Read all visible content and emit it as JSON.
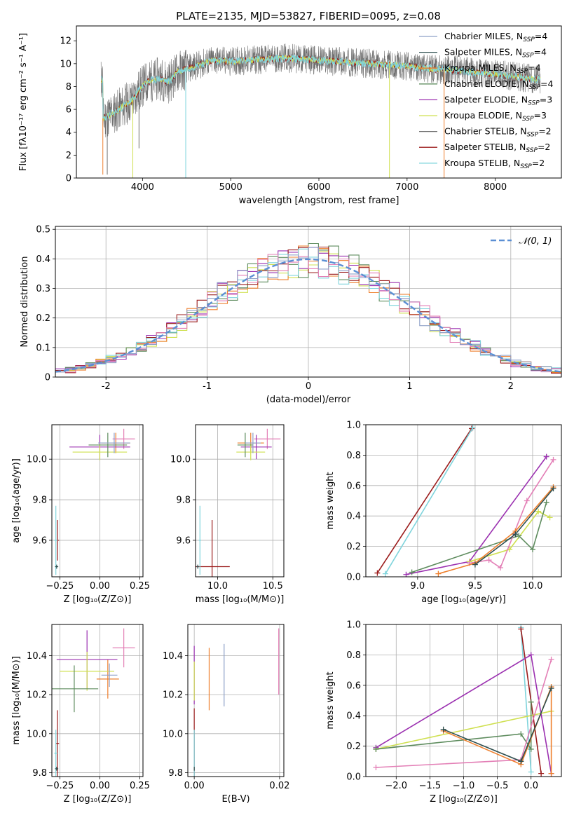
{
  "figure_title": "PLATE=2135, MJD=53827, FIBERID=0095, z=0.08",
  "colors": {
    "chab_miles": "#8ea0c8",
    "salp_miles": "#2f4f4f",
    "krou_miles": "#ee7f2d",
    "chab_elodie": "#5e8c5e",
    "salp_elodie": "#9b30b0",
    "krou_elodie": "#cfe050",
    "chab_stelib": "#707070",
    "salp_stelib": "#9b1c1c",
    "krou_stelib": "#7fd4dc",
    "pink": "#e37fb6",
    "gaussian": "#5b8fd4",
    "grid": "#b0b0b0"
  },
  "chart_data": [
    {
      "id": "spectrum",
      "type": "line",
      "title": "PLATE=2135, MJD=53827, FIBERID=0095, z=0.08",
      "xlabel": "wavelength [Angstrom, rest frame]",
      "ylabel": "Flux [fλ10⁻¹⁷ erg cm⁻² s⁻¹ A⁻¹]",
      "xlim": [
        3250,
        8750
      ],
      "ylim": [
        0,
        13.3
      ],
      "xticks": [
        4000,
        5000,
        6000,
        7000,
        8000
      ],
      "yticks": [
        0,
        2,
        4,
        6,
        8,
        10,
        12
      ],
      "legend_position": "right",
      "legend": [
        {
          "label": "Chabrier MILES, N",
          "sub": "SSP",
          "suffix": "=4",
          "color_key": "chab_miles"
        },
        {
          "label": "Salpeter MILES, N",
          "sub": "SSP",
          "suffix": "=4",
          "color_key": "salp_miles"
        },
        {
          "label": "Kroupa MILES, N",
          "sub": "SSP",
          "suffix": "=4",
          "color_key": "krou_miles"
        },
        {
          "label": "Chabrier ELODIE, N",
          "sub": "SSP",
          "suffix": "=4",
          "color_key": "chab_elodie"
        },
        {
          "label": "Salpeter ELODIE, N",
          "sub": "SSP",
          "suffix": "=3",
          "color_key": "salp_elodie"
        },
        {
          "label": "Kroupa ELODIE, N",
          "sub": "SSP",
          "suffix": "=3",
          "color_key": "krou_elodie"
        },
        {
          "label": "Chabrier STELIB, N",
          "sub": "SSP",
          "suffix": "=2",
          "color_key": "chab_stelib"
        },
        {
          "label": "Salpeter STELIB, N",
          "sub": "SSP",
          "suffix": "=2",
          "color_key": "salp_stelib"
        },
        {
          "label": "Kroupa STELIB, N",
          "sub": "SSP",
          "suffix": "=2",
          "color_key": "krou_stelib"
        }
      ],
      "continuum": [
        [
          3550,
          5.2
        ],
        [
          3700,
          5.8
        ],
        [
          3800,
          6.4
        ],
        [
          3900,
          6.9
        ],
        [
          3950,
          7.6
        ],
        [
          4050,
          8.4
        ],
        [
          4200,
          8.7
        ],
        [
          4300,
          8.4
        ],
        [
          4400,
          9.3
        ],
        [
          4600,
          9.8
        ],
        [
          4800,
          10.3
        ],
        [
          5000,
          10.2
        ],
        [
          5200,
          10.3
        ],
        [
          5400,
          10.4
        ],
        [
          5600,
          10.5
        ],
        [
          5800,
          10.4
        ],
        [
          6000,
          10.3
        ],
        [
          6200,
          10.2
        ],
        [
          6400,
          10.1
        ],
        [
          6600,
          10.0
        ],
        [
          6800,
          9.9
        ],
        [
          7000,
          9.8
        ],
        [
          7200,
          9.6
        ],
        [
          7400,
          9.5
        ],
        [
          7600,
          9.4
        ],
        [
          7800,
          9.2
        ],
        [
          8000,
          9.1
        ],
        [
          8200,
          8.9
        ],
        [
          8400,
          8.7
        ],
        [
          8500,
          8.6
        ]
      ],
      "spectrum_range": [
        3530,
        8510
      ],
      "dips": [
        {
          "x": 3550,
          "y": 0.3,
          "color_key": "krou_miles"
        },
        {
          "x": 3600,
          "y": 0.3,
          "color_key": "chab_stelib"
        },
        {
          "x": 3960,
          "y": 2.6,
          "color_key": "chab_stelib"
        },
        {
          "x": 3890,
          "y": 0,
          "color_key": "krou_elodie"
        },
        {
          "x": 4490,
          "y": 0,
          "color_key": "krou_stelib"
        },
        {
          "x": 6800,
          "y": 0,
          "color_key": "krou_elodie"
        },
        {
          "x": 7420,
          "y": 0,
          "color_key": "krou_miles"
        },
        {
          "x": 8505,
          "y": 8.0,
          "color_key": "chab_stelib"
        }
      ]
    },
    {
      "id": "residuals",
      "type": "bar",
      "xlabel": "(data-model)/error",
      "ylabel": "Normed distribution",
      "xlim": [
        -2.5,
        2.5
      ],
      "ylim": [
        0,
        0.51
      ],
      "xticks": [
        -2,
        -1,
        0,
        1,
        2
      ],
      "yticks": [
        0.0,
        0.1,
        0.2,
        0.3,
        0.4,
        0.5
      ],
      "legend_position": "top-right",
      "gaussian_label": "𝒩(0, 1)",
      "bin_width": 0.1,
      "histogram_series": [
        {
          "color_key": "salp_elodie",
          "seed": 1
        },
        {
          "color_key": "krou_elodie",
          "seed": 2
        },
        {
          "color_key": "chab_elodie",
          "seed": 3
        },
        {
          "color_key": "krou_miles",
          "seed": 4
        },
        {
          "color_key": "salp_stelib",
          "seed": 5
        },
        {
          "color_key": "krou_stelib",
          "seed": 6
        },
        {
          "color_key": "pink",
          "seed": 7
        },
        {
          "color_key": "chab_miles",
          "seed": 8
        }
      ]
    },
    {
      "id": "age_vs_z",
      "type": "scatter",
      "xlabel": "Z [log₁₀(Z/Z⊙)]",
      "ylabel": "age  [log₁₀(age/yr)]",
      "xlim": [
        -0.3,
        0.27
      ],
      "ylim": [
        9.42,
        10.17
      ],
      "xticks": [
        -0.25,
        0.0,
        0.25
      ],
      "xticklabels": [
        "−0.25",
        "0.00",
        "0.25"
      ],
      "yticks": [
        9.6,
        9.8,
        10.0
      ],
      "yticklabels": [
        "9.6",
        "9.8",
        "10.0"
      ],
      "points": [
        {
          "x": 0.1,
          "y": 10.08,
          "xerr": 0.09,
          "yerr": 0.05,
          "color_key": "krou_miles"
        },
        {
          "x": 0.15,
          "y": 10.1,
          "xerr": 0.07,
          "yerr": 0.05,
          "color_key": "pink"
        },
        {
          "x": 0.0,
          "y": 10.06,
          "xerr": 0.19,
          "yerr": 0.06,
          "color_key": "salp_elodie"
        },
        {
          "x": 0.0,
          "y": 10.035,
          "xerr": 0.17,
          "yerr": 0.04,
          "color_key": "krou_elodie"
        },
        {
          "x": 0.05,
          "y": 10.07,
          "xerr": 0.12,
          "yerr": 0.06,
          "color_key": "chab_elodie"
        },
        {
          "x": 0.09,
          "y": 10.08,
          "xerr": 0.1,
          "yerr": 0.05,
          "color_key": "chab_miles"
        },
        {
          "x": -0.265,
          "y": 9.6,
          "xerr": 0.01,
          "yerr": 0.1,
          "color_key": "salp_stelib"
        },
        {
          "x": -0.275,
          "y": 9.6,
          "xerr": 0.01,
          "yerr": 0.17,
          "color_key": "krou_stelib"
        },
        {
          "x": -0.27,
          "y": 9.47,
          "xerr": 0.01,
          "yerr": 0.01,
          "color_key": "salp_miles"
        }
      ]
    },
    {
      "id": "age_vs_mass",
      "type": "scatter",
      "xlabel": "mass [log₁₀(M/M⊙)]",
      "ylabel": "",
      "xlim": [
        9.8,
        10.6
      ],
      "ylim": [
        9.42,
        10.17
      ],
      "xticks": [
        10.0,
        10.5
      ],
      "xticklabels": [
        "10.0",
        "10.5"
      ],
      "yticks": [
        9.6,
        9.8,
        10.0
      ],
      "yticklabels": [
        "9.6",
        "9.8",
        "10.0"
      ],
      "points": [
        {
          "x": 10.3,
          "y": 10.08,
          "xerr": 0.12,
          "yerr": 0.05,
          "color_key": "krou_miles"
        },
        {
          "x": 10.45,
          "y": 10.1,
          "xerr": 0.12,
          "yerr": 0.05,
          "color_key": "pink"
        },
        {
          "x": 10.35,
          "y": 10.06,
          "xerr": 0.14,
          "yerr": 0.06,
          "color_key": "salp_elodie"
        },
        {
          "x": 10.3,
          "y": 10.035,
          "xerr": 0.13,
          "yerr": 0.04,
          "color_key": "krou_elodie"
        },
        {
          "x": 10.25,
          "y": 10.07,
          "xerr": 0.07,
          "yerr": 0.06,
          "color_key": "chab_elodie"
        },
        {
          "x": 10.32,
          "y": 10.08,
          "xerr": 0.07,
          "yerr": 0.05,
          "color_key": "chab_miles"
        },
        {
          "x": 9.95,
          "y": 9.47,
          "xerr": 0.16,
          "yerr": 0.23,
          "color_key": "salp_stelib"
        },
        {
          "x": 9.84,
          "y": 9.6,
          "xerr": 0.01,
          "yerr": 0.17,
          "color_key": "krou_stelib"
        },
        {
          "x": 9.82,
          "y": 9.47,
          "xerr": 0.01,
          "yerr": 0.01,
          "color_key": "salp_miles"
        }
      ]
    },
    {
      "id": "weight_vs_age",
      "type": "line",
      "xlabel": "age  [log₁₀(age/yr)]",
      "ylabel": "mass weight",
      "xlim": [
        8.55,
        10.25
      ],
      "ylim": [
        0,
        1.0
      ],
      "xticks": [
        9.0,
        9.5,
        10.0
      ],
      "xticklabels": [
        "9.0",
        "9.5",
        "10.0"
      ],
      "yticks": [
        0,
        0.2,
        0.4,
        0.6,
        0.8,
        1.0
      ],
      "yticklabels": [
        "0.0",
        "0.2",
        "0.4",
        "0.6",
        "0.8",
        "1.0"
      ],
      "series": [
        {
          "color_key": "salp_stelib",
          "x": [
            8.65,
            9.47
          ],
          "y": [
            0.025,
            0.975
          ]
        },
        {
          "color_key": "krou_stelib",
          "x": [
            8.72,
            9.48
          ],
          "y": [
            0.02,
            0.98
          ]
        },
        {
          "color_key": "salp_elodie",
          "x": [
            8.9,
            9.45,
            10.12
          ],
          "y": [
            0.015,
            0.1,
            0.79
          ]
        },
        {
          "color_key": "krou_elodie",
          "x": [
            9.45,
            9.8,
            10.05,
            10.15
          ],
          "y": [
            0.1,
            0.18,
            0.43,
            0.39
          ]
        },
        {
          "color_key": "chab_elodie",
          "x": [
            8.95,
            9.88,
            10.0,
            10.12
          ],
          "y": [
            0.03,
            0.27,
            0.18,
            0.49
          ]
        },
        {
          "color_key": "pink",
          "x": [
            9.45,
            9.62,
            9.72,
            9.95,
            10.18
          ],
          "y": [
            0.09,
            0.11,
            0.06,
            0.5,
            0.77
          ]
        },
        {
          "color_key": "krou_miles",
          "x": [
            9.18,
            9.5,
            9.85,
            10.18
          ],
          "y": [
            0.02,
            0.09,
            0.3,
            0.59
          ]
        },
        {
          "color_key": "salp_miles",
          "x": [
            9.5,
            9.85,
            10.18
          ],
          "y": [
            0.08,
            0.28,
            0.58
          ]
        }
      ]
    },
    {
      "id": "mass_vs_z",
      "type": "scatter",
      "xlabel": "Z [log₁₀(Z/Z⊙)]",
      "ylabel": "mass [log₁₀(M/M⊙)]",
      "xlim": [
        -0.3,
        0.27
      ],
      "ylim": [
        9.78,
        10.56
      ],
      "xticks": [
        -0.25,
        0.0,
        0.25
      ],
      "xticklabels": [
        "−0.25",
        "0.00",
        "0.25"
      ],
      "yticks": [
        9.8,
        10.0,
        10.2,
        10.4
      ],
      "yticklabels": [
        "9.8",
        "10.0",
        "10.2",
        "10.4"
      ],
      "points": [
        {
          "x": 0.05,
          "y": 10.28,
          "xerr": 0.07,
          "yerr": 0.1,
          "color_key": "krou_miles"
        },
        {
          "x": 0.15,
          "y": 10.44,
          "xerr": 0.07,
          "yerr": 0.1,
          "color_key": "pink"
        },
        {
          "x": -0.08,
          "y": 10.38,
          "xerr": 0.19,
          "yerr": 0.15,
          "color_key": "salp_elodie"
        },
        {
          "x": -0.08,
          "y": 10.32,
          "xerr": 0.17,
          "yerr": 0.1,
          "color_key": "krou_elodie"
        },
        {
          "x": -0.16,
          "y": 10.23,
          "xerr": 0.15,
          "yerr": 0.12,
          "color_key": "chab_elodie"
        },
        {
          "x": 0.06,
          "y": 10.3,
          "xerr": 0.05,
          "yerr": 0.06,
          "color_key": "chab_miles"
        },
        {
          "x": -0.265,
          "y": 9.95,
          "xerr": 0.01,
          "yerr": 0.17,
          "color_key": "salp_stelib"
        },
        {
          "x": -0.275,
          "y": 9.9,
          "xerr": 0.01,
          "yerr": 0.12,
          "color_key": "krou_stelib"
        },
        {
          "x": -0.27,
          "y": 9.82,
          "xerr": 0.01,
          "yerr": 0.01,
          "color_key": "salp_miles"
        }
      ]
    },
    {
      "id": "mass_vs_ebv",
      "type": "scatter",
      "xlabel": "E(B-V)",
      "ylabel": "",
      "xlim": [
        -0.0015,
        0.021
      ],
      "ylim": [
        9.78,
        10.56
      ],
      "xticks": [
        0.0,
        0.02
      ],
      "xticklabels": [
        "0.00",
        "0.02"
      ],
      "yticks": [
        9.8,
        10.0,
        10.2,
        10.4
      ],
      "yticklabels": [
        "9.8",
        "10.0",
        "10.2",
        "10.4"
      ],
      "points": [
        {
          "x": 0.0,
          "y": 10.3,
          "xerr": 0,
          "yerr": 0.15,
          "color_key": "salp_elodie"
        },
        {
          "x": 0.0,
          "y": 10.27,
          "xerr": 0,
          "yerr": 0.1,
          "color_key": "krou_elodie"
        },
        {
          "x": 0.0,
          "y": 9.95,
          "xerr": 0,
          "yerr": 0.18,
          "color_key": "salp_stelib"
        },
        {
          "x": 0.0,
          "y": 9.9,
          "xerr": 0,
          "yerr": 0.12,
          "color_key": "krou_stelib"
        },
        {
          "x": 0.0,
          "y": 9.82,
          "xerr": 0,
          "yerr": 0.01,
          "color_key": "salp_miles"
        },
        {
          "x": 0.0035,
          "y": 10.28,
          "xerr": 0,
          "yerr": 0.16,
          "color_key": "krou_miles"
        },
        {
          "x": 0.007,
          "y": 10.3,
          "xerr": 0,
          "yerr": 0.16,
          "color_key": "chab_miles"
        },
        {
          "x": 0.0198,
          "y": 10.37,
          "xerr": 0,
          "yerr": 0.17,
          "color_key": "pink"
        }
      ]
    },
    {
      "id": "weight_vs_z",
      "type": "line",
      "xlabel": "Z [log₁₀(Z/Z⊙)]",
      "ylabel": "mass weight",
      "xlim": [
        -2.45,
        0.45
      ],
      "ylim": [
        0,
        1.0
      ],
      "xticks": [
        -2.0,
        -1.5,
        -1.0,
        -0.5,
        0.0
      ],
      "xticklabels": [
        "−2.0",
        "−1.5",
        "−1.0",
        "−0.5",
        "0.0"
      ],
      "yticks": [
        0,
        0.2,
        0.4,
        0.6,
        0.8,
        1.0
      ],
      "yticklabels": [
        "0.0",
        "0.2",
        "0.4",
        "0.6",
        "0.8",
        "1.0"
      ],
      "series": [
        {
          "color_key": "krou_stelib",
          "x": [
            -0.15,
            0.0
          ],
          "y": [
            0.98,
            0.03
          ]
        },
        {
          "color_key": "salp_stelib",
          "x": [
            -0.15,
            0.15
          ],
          "y": [
            0.97,
            0.02
          ]
        },
        {
          "color_key": "salp_elodie",
          "x": [
            -2.3,
            0.0,
            0.3
          ],
          "y": [
            0.19,
            0.8,
            0.02
          ]
        },
        {
          "color_key": "krou_elodie",
          "x": [
            -2.3,
            0.3
          ],
          "y": [
            0.18,
            0.43
          ]
        },
        {
          "color_key": "chab_elodie",
          "x": [
            -2.3,
            -0.15,
            0.0,
            0.0
          ],
          "y": [
            0.18,
            0.28,
            0.18,
            0.49
          ]
        },
        {
          "color_key": "pink",
          "x": [
            -2.3,
            -0.15,
            0.3
          ],
          "y": [
            0.06,
            0.11,
            0.77
          ]
        },
        {
          "color_key": "krou_miles",
          "x": [
            -1.3,
            -0.15,
            0.3,
            0.3
          ],
          "y": [
            0.3,
            0.08,
            0.59,
            0.02
          ]
        },
        {
          "color_key": "salp_miles",
          "x": [
            -1.3,
            -0.15,
            0.3
          ],
          "y": [
            0.31,
            0.1,
            0.58
          ]
        }
      ]
    }
  ]
}
